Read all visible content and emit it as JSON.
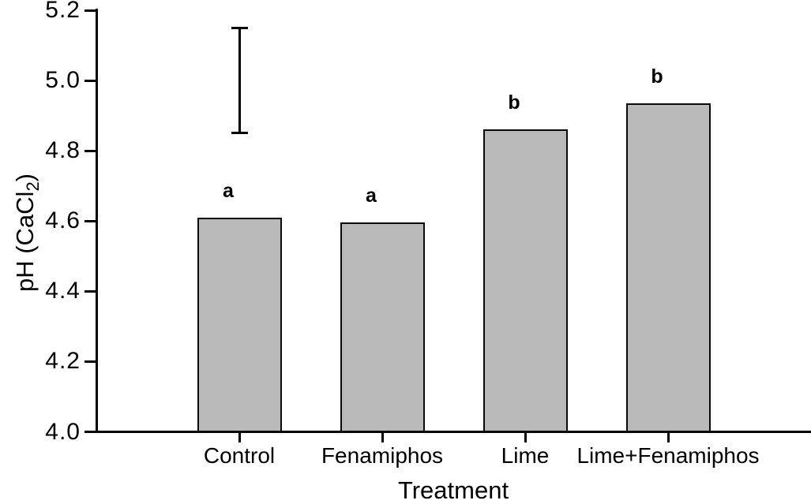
{
  "figure": {
    "background_color": "#ffffff",
    "text_color": "#000000"
  },
  "chart_data": {
    "type": "bar",
    "title": "",
    "xlabel": "Treatment",
    "ylabel": {
      "text": "pH (CaCl2)",
      "prefix": "pH (CaCl",
      "subscript": "2",
      "suffix": ")"
    },
    "categories": [
      "Control",
      "Fenamiphos",
      "Lime",
      "Lime+Fenamiphos"
    ],
    "values": [
      4.61,
      4.595,
      4.86,
      4.935
    ],
    "significance_letters": [
      "a",
      "a",
      "b",
      "b"
    ],
    "ylim": [
      4.0,
      5.2
    ],
    "yticks": [
      4.0,
      4.2,
      4.4,
      4.6,
      4.8,
      5.0,
      5.2
    ],
    "ytick_decimals": 1,
    "grid": false,
    "legend": null,
    "bar_color": "#b9b9b9",
    "bar_border_color": "#0a0a0a",
    "error_bar": {
      "over_category_index": 0,
      "low": 4.85,
      "high": 5.15
    }
  }
}
